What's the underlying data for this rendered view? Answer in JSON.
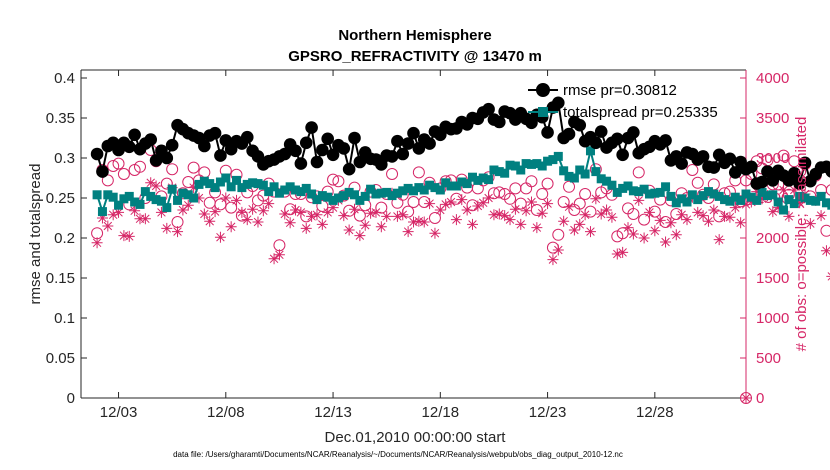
{
  "chart_data": {
    "type": "line",
    "title": "Northern Hemisphere",
    "subtitle": "GPSRO_REFRACTIVITY @ 13470 m",
    "xlabel": "Dec.01,2010 00:00:00 start",
    "ylabel": "rmse and totalspread",
    "y2label": "# of obs: o=possible; ×=assimilated",
    "footer": "data file: /Users/gharamti/Documents/NCAR/Reanalysis/~/Documents/NCAR/Reanalysis/webpub/obs_diag_output_2010-12.nc",
    "x_unit": "days since Dec.01,2010 00:00:00",
    "xlim": [
      0.25,
      31.25
    ],
    "ylim": [
      0,
      0.41
    ],
    "y2lim": [
      0,
      4100
    ],
    "x_tick_values": [
      2,
      7,
      12,
      17,
      22,
      27
    ],
    "x_tick_labels": [
      "12/03",
      "12/08",
      "12/13",
      "12/18",
      "12/23",
      "12/28"
    ],
    "y_tick_values": [
      0,
      0.05,
      0.1,
      0.15,
      0.2,
      0.25,
      0.3,
      0.35,
      0.4
    ],
    "y_tick_labels": [
      "0",
      "0.05",
      "0.1",
      "0.15",
      "0.2",
      "0.25",
      "0.3",
      "0.35",
      "0.4"
    ],
    "y2_tick_values": [
      0,
      500,
      1000,
      1500,
      2000,
      2500,
      3000,
      3500,
      4000
    ],
    "y2_tick_labels": [
      "0",
      "500",
      "1000",
      "1500",
      "2000",
      "2500",
      "3000",
      "3500",
      "4000"
    ],
    "grid": false,
    "legend_position": "top-right",
    "series": [
      {
        "name": "rmse pr=0.30812",
        "axis": "left",
        "color": "#000000",
        "marker": "filled-circle",
        "values": [
          0.305,
          0.283,
          0.315,
          0.319,
          0.31,
          0.319,
          0.314,
          0.329,
          0.311,
          0.318,
          0.323,
          0.297,
          0.309,
          0.3,
          0.316,
          0.341,
          0.336,
          0.331,
          0.328,
          0.325,
          0.315,
          0.328,
          0.331,
          0.303,
          0.322,
          0.311,
          0.321,
          0.318,
          0.326,
          0.309,
          0.302,
          0.292,
          0.296,
          0.298,
          0.302,
          0.305,
          0.317,
          0.309,
          0.293,
          0.319,
          0.338,
          0.295,
          0.31,
          0.324,
          0.304,
          0.316,
          0.312,
          0.286,
          0.325,
          0.295,
          0.307,
          0.299,
          0.298,
          0.292,
          0.303,
          0.302,
          0.321,
          0.305,
          0.318,
          0.331,
          0.312,
          0.323,
          0.318,
          0.333,
          0.329,
          0.339,
          0.336,
          0.337,
          0.345,
          0.342,
          0.35,
          0.349,
          0.357,
          0.361,
          0.348,
          0.345,
          0.358,
          0.356,
          0.348,
          0.356,
          0.349,
          0.344,
          0.354,
          0.351,
          0.332,
          0.363,
          0.369,
          0.325,
          0.33,
          0.345,
          0.341,
          0.321,
          0.326,
          0.319,
          0.333,
          0.313,
          0.319,
          0.324,
          0.304,
          0.325,
          0.332,
          0.306,
          0.311,
          0.314,
          0.321,
          0.317,
          0.322,
          0.297,
          0.302,
          0.293,
          0.307,
          0.305,
          0.298,
          0.302,
          0.289,
          0.288,
          0.304,
          0.294,
          0.299,
          0.282,
          0.295,
          0.286,
          0.289,
          0.268,
          0.27,
          0.283,
          0.272,
          0.284,
          0.278,
          0.272,
          0.281,
          0.268,
          0.294,
          0.271,
          0.28,
          0.288,
          0.289,
          0.283,
          0.27,
          0.273,
          0.292,
          0.285,
          0.278,
          0.294,
          0.301,
          0.287,
          0.29,
          0.291,
          0.297,
          0.298,
          0.275,
          0.296,
          0.312,
          0.318,
          0.323,
          0.322,
          0.305,
          0.308,
          0.311,
          0.312,
          0.301,
          0.315,
          0.26,
          0.18,
          0.35,
          0.342,
          0.297,
          0.292,
          0.289,
          0.299,
          0.318,
          0.328,
          0.297,
          0.31,
          0.325,
          0.28,
          0.282
        ]
      },
      {
        "name": "totalspread pr=0.25335",
        "axis": "left",
        "color": "#008080",
        "marker": "filled-square",
        "values": [
          0.254,
          0.233,
          0.254,
          0.251,
          0.241,
          0.249,
          0.252,
          0.245,
          0.242,
          0.258,
          0.252,
          0.248,
          0.246,
          0.238,
          0.261,
          0.247,
          0.256,
          0.254,
          0.25,
          0.267,
          0.271,
          0.268,
          0.263,
          0.27,
          0.275,
          0.264,
          0.272,
          0.263,
          0.267,
          0.269,
          0.268,
          0.266,
          0.258,
          0.264,
          0.256,
          0.26,
          0.264,
          0.26,
          0.258,
          0.262,
          0.255,
          0.248,
          0.253,
          0.251,
          0.247,
          0.25,
          0.253,
          0.257,
          0.254,
          0.247,
          0.252,
          0.261,
          0.255,
          0.256,
          0.257,
          0.253,
          0.256,
          0.259,
          0.262,
          0.259,
          0.263,
          0.26,
          0.266,
          0.263,
          0.26,
          0.269,
          0.265,
          0.265,
          0.27,
          0.268,
          0.276,
          0.272,
          0.275,
          0.273,
          0.285,
          0.283,
          0.281,
          0.291,
          0.29,
          0.285,
          0.293,
          0.292,
          0.293,
          0.29,
          0.296,
          0.298,
          0.302,
          0.284,
          0.277,
          0.275,
          0.285,
          0.28,
          0.309,
          0.283,
          0.274,
          0.271,
          0.266,
          0.257,
          0.262,
          0.265,
          0.259,
          0.258,
          0.261,
          0.255,
          0.256,
          0.257,
          0.264,
          0.252,
          0.244,
          0.249,
          0.245,
          0.254,
          0.248,
          0.253,
          0.258,
          0.255,
          0.252,
          0.248,
          0.246,
          0.251,
          0.247,
          0.255,
          0.251,
          0.247,
          0.257,
          0.253,
          0.254,
          0.245,
          0.235,
          0.248,
          0.243,
          0.252,
          0.25,
          0.247,
          0.246,
          0.252,
          0.244,
          0.241,
          0.247,
          0.247,
          0.244,
          0.254,
          0.251,
          0.247,
          0.249,
          0.245,
          0.241,
          0.244,
          0.252,
          0.249,
          0.248,
          0.246,
          0.24,
          0.254,
          0.243,
          0.249,
          0.24,
          0.233,
          0.243,
          0.251,
          0.254,
          0.249,
          0.25,
          0.245,
          0.24,
          0.25,
          0.199,
          0.153,
          0.313,
          0.307,
          0.296,
          0.264,
          0.249,
          0.253,
          0.243,
          0.256,
          0.246,
          0.247,
          0.238,
          0.268,
          0.237
        ]
      },
      {
        "name": "possible obs",
        "axis": "right",
        "color": "#d62767",
        "marker": "open-circle",
        "values": [
          2060,
          2850,
          2720,
          2900,
          2930,
          2800,
          2420,
          2850,
          2890,
          2500,
          3100,
          2960,
          2520,
          2680,
          2860,
          2200,
          2560,
          2700,
          2880,
          2720,
          2820,
          2440,
          2570,
          2420,
          2840,
          2380,
          2790,
          2280,
          2570,
          2650,
          2470,
          2530,
          2680,
          2580,
          1910,
          2580,
          2360,
          2550,
          2550,
          2270,
          2510,
          2520,
          2400,
          2580,
          2730,
          2710,
          2530,
          2340,
          2630,
          2280,
          2410,
          2580,
          2600,
          2380,
          2550,
          2800,
          2440,
          2540,
          2330,
          2450,
          2820,
          2450,
          2690,
          2250,
          2620,
          2710,
          2720,
          2490,
          2730,
          2630,
          2410,
          2620,
          2720,
          2760,
          2560,
          2570,
          2550,
          2490,
          2620,
          2430,
          2620,
          2710,
          2350,
          2550,
          2680,
          1880,
          2040,
          2450,
          2640,
          2350,
          2430,
          2550,
          2330,
          2860,
          2570,
          2620,
          2540,
          2020,
          2060,
          2370,
          2300,
          2820,
          2230,
          2590,
          2330,
          2480,
          2200,
          2470,
          2300,
          2560,
          2500,
          2850,
          2690,
          2540,
          2500,
          2670,
          2270,
          2560,
          2580,
          2720,
          2460,
          2720,
          2800,
          2960,
          2870,
          2970,
          2670,
          2670,
          3030,
          2540,
          2960,
          2730,
          2920,
          2520,
          2780,
          2600,
          2090,
          2600,
          2180,
          2610,
          2490,
          2530,
          2250,
          2340,
          2720,
          2980,
          2520,
          2840,
          2500,
          2860,
          2950,
          2520,
          2590,
          2200,
          2940,
          2820,
          2910,
          2310,
          2530,
          2860,
          2540,
          2700,
          2440,
          2610,
          2230,
          2660,
          2340,
          2730,
          2040,
          2320,
          2940,
          2520,
          2560,
          2390,
          2430,
          2560,
          1700,
          1480,
          2630,
          2140,
          2410,
          2520,
          1540,
          1200,
          1260,
          1320
        ]
      },
      {
        "name": "assimilated obs",
        "axis": "right",
        "color": "#d62767",
        "marker": "asterisk",
        "values": [
          1940,
          2250,
          2150,
          2290,
          2320,
          2030,
          2020,
          2340,
          2240,
          2240,
          2690,
          2650,
          2320,
          2120,
          2630,
          2080,
          2350,
          2410,
          2630,
          2500,
          2300,
          2210,
          2330,
          2010,
          2500,
          2140,
          2470,
          2320,
          2230,
          2360,
          2200,
          2340,
          2430,
          1740,
          1790,
          2300,
          2190,
          2350,
          2320,
          2120,
          2270,
          2290,
          2170,
          2320,
          2380,
          2470,
          2280,
          2100,
          2360,
          2030,
          2160,
          2310,
          2320,
          2140,
          2270,
          2560,
          2270,
          2290,
          2080,
          2200,
          2210,
          2200,
          2430,
          2060,
          2350,
          2420,
          2450,
          2230,
          2480,
          2350,
          2170,
          2400,
          2440,
          2500,
          2290,
          2300,
          2280,
          2230,
          2360,
          2170,
          2340,
          2450,
          2130,
          2310,
          2430,
          1730,
          1850,
          2210,
          2390,
          2100,
          2170,
          2290,
          2080,
          2490,
          2300,
          2350,
          2260,
          1800,
          1820,
          2130,
          2050,
          2470,
          2000,
          2320,
          2090,
          2220,
          1950,
          2190,
          2040,
          2290,
          2230,
          2510,
          2320,
          2280,
          2210,
          2350,
          1980,
          2270,
          2260,
          2380,
          2190,
          2420,
          2450,
          2580,
          2490,
          2530,
          2330,
          2380,
          2600,
          2270,
          2600,
          2440,
          2550,
          2180,
          2470,
          2280,
          1840,
          1520,
          1970,
          2320,
          2240,
          2240,
          2000,
          2100,
          2430,
          2620,
          2270,
          2500,
          2210,
          2530,
          2600,
          2220,
          2320,
          1960,
          2590,
          2480,
          2530,
          2050,
          2270,
          2520,
          2300,
          2400,
          2160,
          2330,
          2000,
          2370,
          2140,
          2400,
          1850,
          2090,
          2560,
          2280,
          2300,
          2150,
          2230,
          2340,
          1540,
          1420,
          2380,
          1950,
          2150,
          2260,
          1400,
          1150,
          1190,
          1210
        ]
      }
    ]
  }
}
